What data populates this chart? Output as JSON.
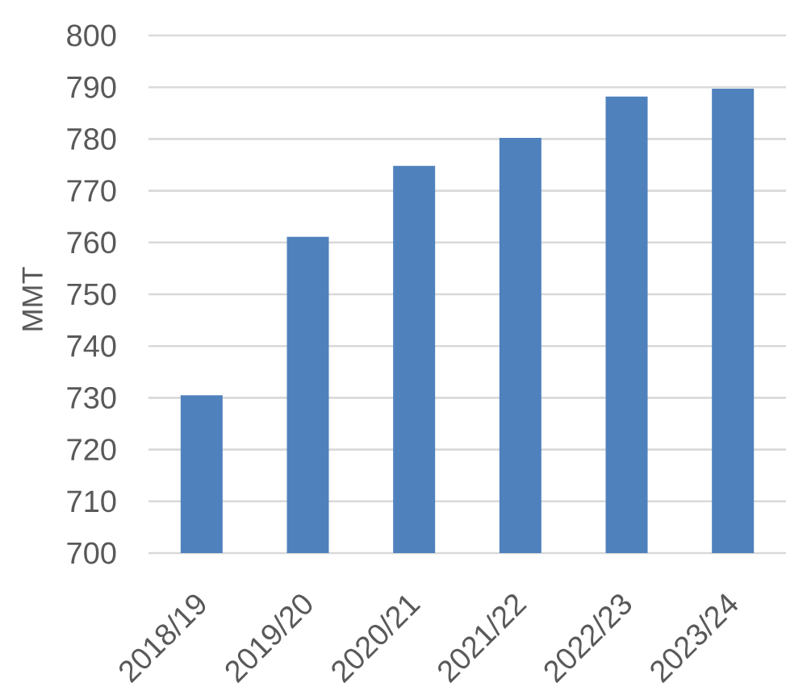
{
  "chart_data": {
    "type": "bar",
    "ylabel": "MMT",
    "categories": [
      "2018/19",
      "2019/20",
      "2020/21",
      "2021/22",
      "2022/23",
      "2023/24"
    ],
    "values": [
      730.5,
      761.1,
      774.8,
      780.2,
      788.2,
      789.7
    ],
    "color": "#4f81bd",
    "ylim": [
      700,
      800
    ],
    "yticks": [
      700,
      710,
      720,
      730,
      740,
      750,
      760,
      770,
      780,
      790,
      800
    ],
    "grid": "y"
  }
}
